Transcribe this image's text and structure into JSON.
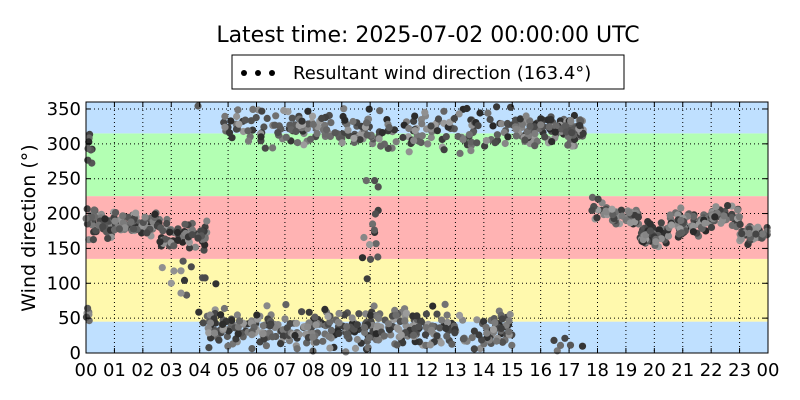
{
  "chart_data": {
    "type": "scatter",
    "title": "Latest time: 2025-07-02 00:00:00 UTC",
    "ylabel": "Wind direction (°)",
    "xlabel": "",
    "legend": {
      "label": "Resultant wind direction (163.4°)",
      "placement": "top-center"
    },
    "xlim_hours": [
      0,
      24
    ],
    "ylim": [
      0,
      360
    ],
    "xtick_labels": [
      "00",
      "01",
      "02",
      "03",
      "04",
      "05",
      "06",
      "07",
      "08",
      "09",
      "10",
      "11",
      "12",
      "13",
      "14",
      "15",
      "16",
      "17",
      "18",
      "19",
      "20",
      "21",
      "22",
      "23",
      "00"
    ],
    "ytick_values": [
      0,
      50,
      100,
      150,
      200,
      250,
      300,
      350
    ],
    "grid": true,
    "bands": [
      {
        "from": 0,
        "to": 45,
        "color": "#bfe0ff"
      },
      {
        "from": 45,
        "to": 135,
        "color": "#fff9ad"
      },
      {
        "from": 135,
        "to": 225,
        "color": "#ffb3b3"
      },
      {
        "from": 225,
        "to": 315,
        "color": "#b3ffb3"
      },
      {
        "from": 315,
        "to": 360,
        "color": "#bfe0ff"
      }
    ],
    "segments": [
      {
        "from": 0.0,
        "to": 0.15,
        "center": 50,
        "spread": 30,
        "count": 6
      },
      {
        "from": 0.0,
        "to": 0.25,
        "center": 295,
        "spread": 40,
        "count": 8
      },
      {
        "from": 0.0,
        "to": 1.0,
        "center": 185,
        "spread": 30,
        "count": 60
      },
      {
        "from": 1.0,
        "to": 2.6,
        "center": 185,
        "spread": 25,
        "count": 70
      },
      {
        "from": 2.6,
        "to": 4.3,
        "center": 170,
        "spread": 30,
        "count": 70
      },
      {
        "from": 2.6,
        "to": 4.3,
        "center": 110,
        "spread": 50,
        "count": 10
      },
      {
        "from": 3.9,
        "to": 4.6,
        "center": 60,
        "spread": 80,
        "count": 12
      },
      {
        "from": 4.3,
        "to": 10.2,
        "center": 35,
        "spread": 40,
        "count": 220
      },
      {
        "from": 4.8,
        "to": 10.2,
        "center": 320,
        "spread": 40,
        "count": 130
      },
      {
        "from": 9.7,
        "to": 10.3,
        "center": 180,
        "spread": 140,
        "count": 15
      },
      {
        "from": 10.0,
        "to": 15.0,
        "center": 35,
        "spread": 40,
        "count": 170
      },
      {
        "from": 10.3,
        "to": 15.0,
        "center": 320,
        "spread": 40,
        "count": 110
      },
      {
        "from": 15.0,
        "to": 17.5,
        "center": 320,
        "spread": 35,
        "count": 110
      },
      {
        "from": 16.0,
        "to": 17.5,
        "center": 15,
        "spread": 20,
        "count": 6
      },
      {
        "from": 17.8,
        "to": 18.5,
        "center": 205,
        "spread": 30,
        "count": 20
      },
      {
        "from": 18.5,
        "to": 19.5,
        "center": 195,
        "spread": 20,
        "count": 40
      },
      {
        "from": 19.5,
        "to": 20.5,
        "center": 170,
        "spread": 25,
        "count": 60
      },
      {
        "from": 20.5,
        "to": 22.0,
        "center": 185,
        "spread": 25,
        "count": 70
      },
      {
        "from": 22.0,
        "to": 23.0,
        "center": 195,
        "spread": 20,
        "count": 50
      },
      {
        "from": 23.0,
        "to": 24.0,
        "center": 170,
        "spread": 20,
        "count": 50
      }
    ]
  }
}
